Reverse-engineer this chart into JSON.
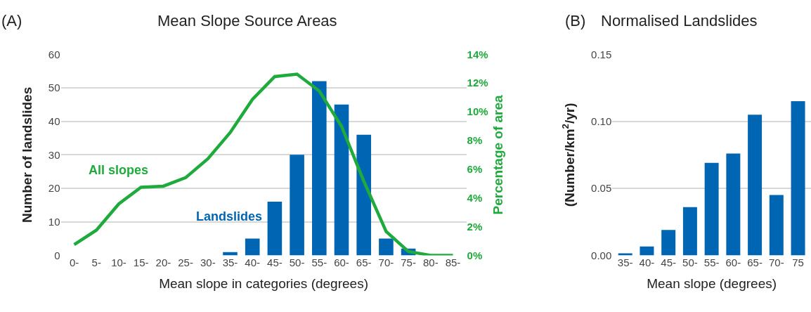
{
  "chart_data": [
    {
      "type": "bar",
      "title": "Mean Slope Source Areas",
      "xlabel": "Mean slope in categories (degrees)",
      "ylabel": "Number of landslides",
      "y2label": "Percentage of area",
      "annotations": [
        "(A)"
      ],
      "categories": [
        "0-",
        "5-",
        "10-",
        "15-",
        "20-",
        "25-",
        "30-",
        "35-",
        "40-",
        "45-",
        "50-",
        "55-",
        "60-",
        "65-",
        "70-",
        "75-",
        "80-",
        "85-"
      ],
      "series": [
        {
          "name": "Landslides",
          "type": "bar",
          "color": "#0066b3",
          "values": [
            0,
            0,
            0,
            0,
            0,
            0,
            0,
            1,
            5,
            16,
            30,
            52,
            45,
            36,
            5,
            2,
            0,
            0
          ]
        },
        {
          "name": "All slopes",
          "type": "line",
          "axis": "y2",
          "color": "#1eaa3c",
          "values": [
            0.75,
            1.76,
            3.58,
            4.74,
            4.82,
            5.41,
            6.73,
            8.55,
            10.86,
            12.45,
            12.62,
            11.45,
            8.99,
            5.16,
            1.66,
            0.27,
            0,
            0
          ]
        }
      ],
      "ylim": [
        0,
        60
      ],
      "yticks": [
        0,
        10,
        20,
        30,
        40,
        50,
        60
      ],
      "y2lim": [
        0,
        14
      ],
      "y2ticks": [
        {
          "value": 0,
          "label": "0%"
        },
        {
          "value": 2,
          "label": "2%"
        },
        {
          "value": 4,
          "label": "4%"
        },
        {
          "value": 6,
          "label": "6%"
        },
        {
          "value": 8,
          "label": "8%"
        },
        {
          "value": 10,
          "label": "10%"
        },
        {
          "value": 12,
          "label": "12%"
        },
        {
          "value": 14,
          "label": "14%"
        }
      ],
      "grid": "y",
      "legend": false,
      "marker": "none",
      "line_style": "solid"
    },
    {
      "type": "bar",
      "title": "Normalised Landslides",
      "xlabel": "Mean slope (degrees)",
      "ylabel": "(Number/km$^{2}$/yr)",
      "annotations": [
        "(B)"
      ],
      "categories": [
        "35-",
        "40-",
        "45-",
        "50-",
        "55-",
        "60-",
        "65-",
        "70-",
        "75"
      ],
      "color": "#0066b3",
      "values": [
        0.0015,
        0.0066,
        0.019,
        0.036,
        0.069,
        0.076,
        0.105,
        0.045,
        0.115
      ],
      "ylim": [
        0,
        0.15
      ],
      "yticks": [
        {
          "value": 0,
          "label": "0.00"
        },
        {
          "value": 0.05,
          "label": "0.05"
        },
        {
          "value": 0.1,
          "label": "0.10"
        },
        {
          "value": 0.15,
          "label": "0.15"
        }
      ],
      "grid": "y",
      "legend": false
    }
  ]
}
